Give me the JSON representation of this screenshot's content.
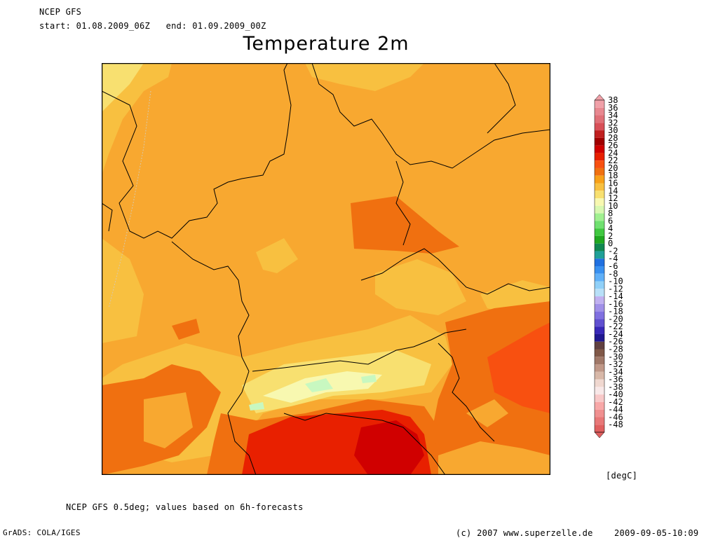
{
  "header": {
    "model": "NCEP GFS",
    "period": "start: 01.08.2009_06Z   end: 01.09.2009_00Z",
    "title": "Temperature 2m"
  },
  "footer": {
    "note": "NCEP GFS 0.5deg; values based on 6h-forecasts",
    "software": "GrADS: COLA/IGES",
    "copyright": "(c) 2007 www.superzelle.de",
    "timestamp": "2009-09-05-10:09"
  },
  "legend": {
    "unit": "[degC]",
    "levels": [
      {
        "label": "38",
        "color": "#f0a0a8"
      },
      {
        "label": "36",
        "color": "#e88890"
      },
      {
        "label": "34",
        "color": "#e07078"
      },
      {
        "label": "32",
        "color": "#d85058"
      },
      {
        "label": "30",
        "color": "#c02020"
      },
      {
        "label": "28",
        "color": "#a00000"
      },
      {
        "label": "26",
        "color": "#d00000"
      },
      {
        "label": "24",
        "color": "#e82000"
      },
      {
        "label": "22",
        "color": "#f85010"
      },
      {
        "label": "20",
        "color": "#f07010"
      },
      {
        "label": "18",
        "color": "#f8a018"
      },
      {
        "label": "16",
        "color": "#f8c040"
      },
      {
        "label": "14",
        "color": "#f8e070"
      },
      {
        "label": "12",
        "color": "#f8f8b0"
      },
      {
        "label": "10",
        "color": "#d8f8b0"
      },
      {
        "label": "8",
        "color": "#a0f090"
      },
      {
        "label": "6",
        "color": "#70e070"
      },
      {
        "label": "4",
        "color": "#40c840"
      },
      {
        "label": "2",
        "color": "#20a820"
      },
      {
        "label": "0",
        "color": "#108850"
      },
      {
        "label": "-2",
        "color": "#20a098"
      },
      {
        "label": "-4",
        "color": "#2070e0"
      },
      {
        "label": "-6",
        "color": "#3890f0"
      },
      {
        "label": "-8",
        "color": "#60b0f8"
      },
      {
        "label": "-10",
        "color": "#90d0f8"
      },
      {
        "label": "-12",
        "color": "#b8e0f8"
      },
      {
        "label": "-14",
        "color": "#c0b0f0"
      },
      {
        "label": "-16",
        "color": "#a090e8"
      },
      {
        "label": "-18",
        "color": "#8070e0"
      },
      {
        "label": "-20",
        "color": "#6050d0"
      },
      {
        "label": "-22",
        "color": "#3828b8"
      },
      {
        "label": "-24",
        "color": "#201890"
      },
      {
        "label": "-26",
        "color": "#604040"
      },
      {
        "label": "-28",
        "color": "#805848"
      },
      {
        "label": "-30",
        "color": "#a07868"
      },
      {
        "label": "-32",
        "color": "#c09888"
      },
      {
        "label": "-34",
        "color": "#d8b8a8"
      },
      {
        "label": "-36",
        "color": "#f0d8d0"
      },
      {
        "label": "-38",
        "color": "#f8e8e8"
      },
      {
        "label": "-40",
        "color": "#f8c8c8"
      },
      {
        "label": "-42",
        "color": "#f8a8a8"
      },
      {
        "label": "-44",
        "color": "#f09090"
      },
      {
        "label": "-46",
        "color": "#e87878"
      },
      {
        "label": "-48",
        "color": "#e06060"
      }
    ]
  },
  "colors": {
    "t16": "#f8c040",
    "t18": "#f8a830",
    "t20": "#f07010",
    "t22": "#f85010",
    "t24": "#e82000",
    "t26": "#d00000",
    "t14": "#f8e070",
    "t12": "#f8f8b0",
    "t10": "#c8f8c0",
    "coast": "#000000"
  }
}
